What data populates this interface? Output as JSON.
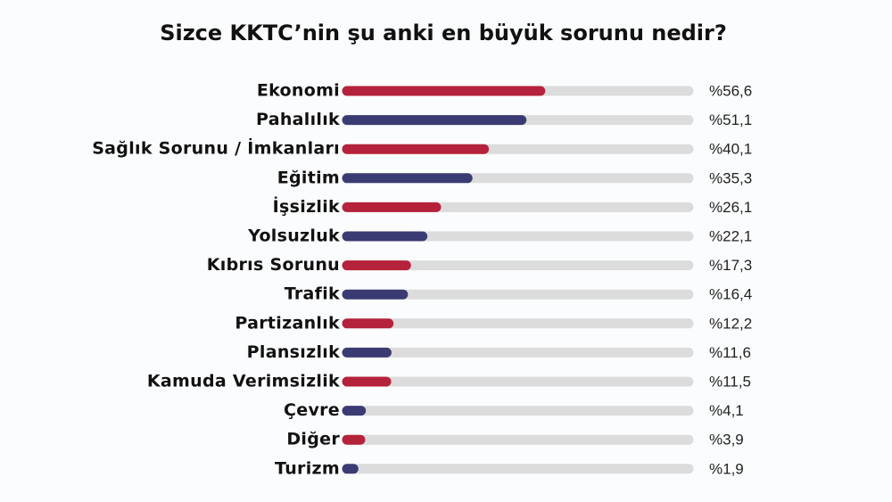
{
  "chart_data": {
    "type": "hbar",
    "title": "Sizce KKTC’nin şu anki en büyük sorunu nedir?",
    "categories": [
      "Ekonomi",
      "Pahalılık",
      "Sağlık Sorunu / İmkanları",
      "Eğitim",
      "İşsizlik",
      "Yolsuzluk",
      "Kıbrıs Sorunu",
      "Trafik",
      "Partizanlık",
      "Plansızlık",
      "Kamuda Verimsizlik",
      "Çevre",
      "Diğer",
      "Turizm"
    ],
    "values": [
      56.6,
      51.1,
      40.1,
      35.3,
      26.1,
      22.1,
      17.3,
      16.4,
      12.2,
      11.6,
      11.5,
      4.1,
      3.9,
      1.9
    ],
    "value_labels": [
      "%56,6",
      "%51,1",
      "%40,1",
      "%35,3",
      "%26,1",
      "%22,1",
      "%17,3",
      "%16,4",
      "%12,2",
      "%11,6",
      "%11,5",
      "%4,1",
      "%3,9",
      "%1,9"
    ],
    "colors": [
      "#b5223b",
      "#3b3b73",
      "#b5223b",
      "#3b3b73",
      "#b5223b",
      "#3b3b73",
      "#b5223b",
      "#3b3b73",
      "#b5223b",
      "#3b3b73",
      "#b5223b",
      "#3b3b73",
      "#b5223b",
      "#3b3b73"
    ],
    "track_color": "#dcdcdc",
    "xlim": [
      0,
      100
    ]
  }
}
